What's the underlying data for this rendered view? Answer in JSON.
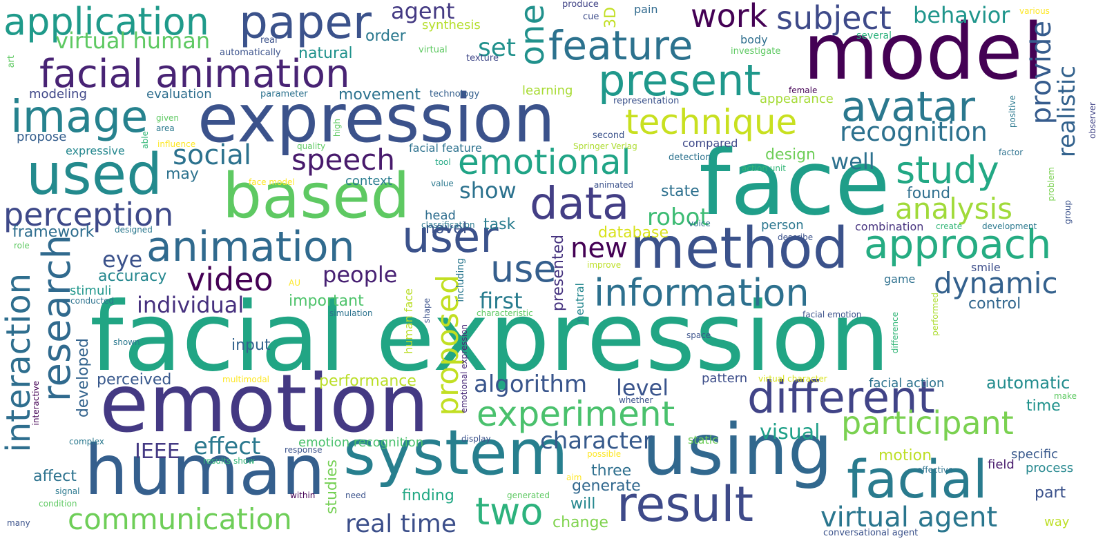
{
  "cloud": {
    "words": [
      {
        "text": "facial expression",
        "color": "#21a584"
      },
      {
        "text": "face",
        "color": "#1f9e89"
      },
      {
        "text": "emotion",
        "color": "#443983"
      },
      {
        "text": "expression",
        "color": "#3b528b"
      },
      {
        "text": "model",
        "color": "#440154"
      },
      {
        "text": "human",
        "color": "#355f8d"
      },
      {
        "text": "using",
        "color": "#31688e"
      },
      {
        "text": "system",
        "color": "#277f8e"
      },
      {
        "text": "based",
        "color": "#5ec962"
      },
      {
        "text": "used",
        "color": "#238a8d"
      },
      {
        "text": "method",
        "color": "#3b528b"
      },
      {
        "text": "result",
        "color": "#3e4a89"
      },
      {
        "text": "facial",
        "color": "#297b8e"
      },
      {
        "text": "different",
        "color": "#414487"
      },
      {
        "text": "paper",
        "color": "#3b528b"
      },
      {
        "text": "image",
        "color": "#26828e"
      },
      {
        "text": "data",
        "color": "#433e85"
      },
      {
        "text": "user",
        "color": "#3b528b"
      },
      {
        "text": "animation",
        "color": "#306a8e"
      },
      {
        "text": "facial animation",
        "color": "#482374"
      },
      {
        "text": "feature",
        "color": "#2c728e"
      },
      {
        "text": "present",
        "color": "#1f988b"
      },
      {
        "text": "approach",
        "color": "#25ac82"
      },
      {
        "text": "information",
        "color": "#2d708e"
      },
      {
        "text": "participant",
        "color": "#7ad151"
      },
      {
        "text": "experiment",
        "color": "#4ac16d"
      },
      {
        "text": "avatar",
        "color": "#2a788e"
      },
      {
        "text": "study",
        "color": "#22a884"
      },
      {
        "text": "application",
        "color": "#1f9a8a"
      },
      {
        "text": "emotional",
        "color": "#20a486"
      },
      {
        "text": "technique",
        "color": "#c8e020"
      },
      {
        "text": "research",
        "color": "#306a8e"
      },
      {
        "text": "interaction",
        "color": "#2e6e8e"
      },
      {
        "text": "two",
        "color": "#2db27d"
      },
      {
        "text": "one",
        "color": "#21918c"
      },
      {
        "text": "use",
        "color": "#355f8d"
      },
      {
        "text": "communication",
        "color": "#6ece58"
      },
      {
        "text": "perception",
        "color": "#3e4989"
      },
      {
        "text": "virtual agent",
        "color": "#2a768e"
      },
      {
        "text": "dynamic",
        "color": "#34618d"
      },
      {
        "text": "analysis",
        "color": "#a0da39"
      },
      {
        "text": "subject",
        "color": "#3e4a89"
      },
      {
        "text": "work",
        "color": "#440154"
      },
      {
        "text": "speech",
        "color": "#481a6c"
      },
      {
        "text": "video",
        "color": "#440154"
      },
      {
        "text": "social",
        "color": "#2c728e"
      },
      {
        "text": "recognition",
        "color": "#2c718e"
      },
      {
        "text": "proposed",
        "color": "#c2df23"
      },
      {
        "text": "provide",
        "color": "#365c8d"
      },
      {
        "text": "algorithm",
        "color": "#39558c"
      },
      {
        "text": "character",
        "color": "#375a8c"
      },
      {
        "text": "real time",
        "color": "#3c4f8a"
      },
      {
        "text": "new",
        "color": "#440154"
      },
      {
        "text": "realistic",
        "color": "#33628d"
      },
      {
        "text": "virtual human",
        "color": "#5ec962"
      },
      {
        "text": "behavior",
        "color": "#1f958b"
      },
      {
        "text": "agent",
        "color": "#443a83"
      },
      {
        "text": "effect",
        "color": "#2a788e"
      },
      {
        "text": "set",
        "color": "#21918c"
      },
      {
        "text": "robot",
        "color": "#3dbc74"
      },
      {
        "text": "people",
        "color": "#482173"
      },
      {
        "text": "individual",
        "color": "#46307e"
      },
      {
        "text": "first",
        "color": "#287c8e"
      },
      {
        "text": "show",
        "color": "#2c728e"
      },
      {
        "text": "well",
        "color": "#2c718e"
      },
      {
        "text": "IEEE",
        "color": "#443983"
      },
      {
        "text": "eye",
        "color": "#3b528b"
      },
      {
        "text": "level",
        "color": "#3a548c"
      },
      {
        "text": "visual",
        "color": "#1fa088"
      },
      {
        "text": "motion",
        "color": "#bddf26"
      },
      {
        "text": "framework",
        "color": "#2e6d8e"
      },
      {
        "text": "important",
        "color": "#4ec36b"
      },
      {
        "text": "performance",
        "color": "#bade28"
      },
      {
        "text": "automatic",
        "color": "#228c8d"
      },
      {
        "text": "task",
        "color": "#287c8e"
      },
      {
        "text": "state",
        "color": "#2d708e"
      },
      {
        "text": "studies",
        "color": "#75d054"
      },
      {
        "text": "database",
        "color": "#d8e219"
      },
      {
        "text": "design",
        "color": "#6ece58"
      },
      {
        "text": "developed",
        "color": "#33638d"
      },
      {
        "text": "control",
        "color": "#31668e"
      },
      {
        "text": "accuracy",
        "color": "#24878e"
      },
      {
        "text": "finding",
        "color": "#22a884"
      },
      {
        "text": "time",
        "color": "#20928c"
      },
      {
        "text": "perceived",
        "color": "#38588c"
      },
      {
        "text": "change",
        "color": "#7fd34e"
      },
      {
        "text": "three",
        "color": "#2e6f8e"
      },
      {
        "text": "will",
        "color": "#24878e"
      },
      {
        "text": "presented",
        "color": "#46337f"
      },
      {
        "text": "generate",
        "color": "#31688e"
      },
      {
        "text": "part",
        "color": "#3b528b"
      },
      {
        "text": "natural",
        "color": "#20928c"
      },
      {
        "text": "3D",
        "color": "#c2df23"
      },
      {
        "text": "affect",
        "color": "#2c728e"
      },
      {
        "text": "movement",
        "color": "#2c728e"
      },
      {
        "text": "input",
        "color": "#33638d"
      },
      {
        "text": "order",
        "color": "#2a788e"
      },
      {
        "text": "head",
        "color": "#2e6d8e"
      },
      {
        "text": "novel",
        "color": "#3b528b"
      },
      {
        "text": "may",
        "color": "#2c728e"
      },
      {
        "text": "found",
        "color": "#2e6f8e"
      },
      {
        "text": "context",
        "color": "#287c8e"
      },
      {
        "text": "process",
        "color": "#24878e"
      },
      {
        "text": "specific",
        "color": "#38588c"
      },
      {
        "text": "person",
        "color": "#2a768e"
      },
      {
        "text": "evaluation",
        "color": "#2e6e8e"
      },
      {
        "text": "propose",
        "color": "#355e8d"
      },
      {
        "text": "modeling",
        "color": "#3f4788"
      },
      {
        "text": "field",
        "color": "#481b6d"
      },
      {
        "text": "emotion recognition",
        "color": "#4ac16d"
      },
      {
        "text": "facial action",
        "color": "#2c728e"
      },
      {
        "text": "pattern",
        "color": "#3d4e8a"
      },
      {
        "text": "stimuli",
        "color": "#1f968b"
      },
      {
        "text": "facial feature",
        "color": "#2c718e"
      },
      {
        "text": "game",
        "color": "#2d708e"
      },
      {
        "text": "expressive",
        "color": "#24878e"
      },
      {
        "text": "synthesis",
        "color": "#b5de2b"
      },
      {
        "text": "learning",
        "color": "#a8db34"
      },
      {
        "text": "appearance",
        "color": "#a5db36"
      },
      {
        "text": "body",
        "color": "#2e6e8e"
      },
      {
        "text": "compared",
        "color": "#3e4989"
      },
      {
        "text": "smile",
        "color": "#3d4e8a"
      },
      {
        "text": "combination",
        "color": "#46327e"
      },
      {
        "text": "static",
        "color": "#6ece58"
      },
      {
        "text": "including",
        "color": "#2a778e"
      },
      {
        "text": "human face",
        "color": "#bade28"
      },
      {
        "text": "neutral",
        "color": "#24878e"
      },
      {
        "text": "several",
        "color": "#2db27d"
      },
      {
        "text": "pain",
        "color": "#306a8e"
      },
      {
        "text": "representation",
        "color": "#3b528b"
      },
      {
        "text": "emotional expression",
        "color": "#482878"
      },
      {
        "text": "technology",
        "color": "#35608d"
      },
      {
        "text": "cue",
        "color": "#3d4d8a"
      },
      {
        "text": "produce",
        "color": "#414487"
      },
      {
        "text": "texture",
        "color": "#3f4788"
      },
      {
        "text": "real",
        "color": "#3b528b"
      },
      {
        "text": "automatically",
        "color": "#3b528b"
      },
      {
        "text": "investigate",
        "color": "#5ec962"
      },
      {
        "text": "various",
        "color": "#fde725"
      },
      {
        "text": "virtual",
        "color": "#5ec962"
      },
      {
        "text": "parameter",
        "color": "#2c728e"
      },
      {
        "text": "female",
        "color": "#440154"
      },
      {
        "text": "second",
        "color": "#3b528b"
      },
      {
        "text": "area",
        "color": "#2a788e"
      },
      {
        "text": "given",
        "color": "#5ec962"
      },
      {
        "text": "influence",
        "color": "#fde725"
      },
      {
        "text": "quality",
        "color": "#5ec962"
      },
      {
        "text": "high",
        "color": "#5ec962"
      },
      {
        "text": "able",
        "color": "#35b779"
      },
      {
        "text": "tool",
        "color": "#22a884"
      },
      {
        "text": "Springer Verlag",
        "color": "#addc30"
      },
      {
        "text": "detection",
        "color": "#2c728e"
      },
      {
        "text": "action unit",
        "color": "#35b779"
      },
      {
        "text": "factor",
        "color": "#2c718e"
      },
      {
        "text": "positive",
        "color": "#2a788e"
      },
      {
        "text": "observer",
        "color": "#414487"
      },
      {
        "text": "problem",
        "color": "#7ad151"
      },
      {
        "text": "group",
        "color": "#3b528b"
      },
      {
        "text": "face model",
        "color": "#fde725"
      },
      {
        "text": "value",
        "color": "#2a788e"
      },
      {
        "text": "animated",
        "color": "#3b528b"
      },
      {
        "text": "voice",
        "color": "#2c728e"
      },
      {
        "text": "classification",
        "color": "#2a788e"
      },
      {
        "text": "designed",
        "color": "#2a788e"
      },
      {
        "text": "create",
        "color": "#35b779"
      },
      {
        "text": "development",
        "color": "#2a788e"
      },
      {
        "text": "describe",
        "color": "#3b528b"
      },
      {
        "text": "role",
        "color": "#5ec962"
      },
      {
        "text": "improve",
        "color": "#bddf26"
      },
      {
        "text": "AU",
        "color": "#fde725"
      },
      {
        "text": "conducted",
        "color": "#2c728e"
      },
      {
        "text": "simulation",
        "color": "#2c728e"
      },
      {
        "text": "characteristic",
        "color": "#5ec962"
      },
      {
        "text": "facial emotion",
        "color": "#3b528b"
      },
      {
        "text": "difference",
        "color": "#35b779"
      },
      {
        "text": "performed",
        "color": "#addc30"
      },
      {
        "text": "shape",
        "color": "#3b528b"
      },
      {
        "text": "shown",
        "color": "#2a788e"
      },
      {
        "text": "space",
        "color": "#3b528b"
      },
      {
        "text": "multimodal",
        "color": "#fde725"
      },
      {
        "text": "interactive",
        "color": "#440154"
      },
      {
        "text": "virtual character",
        "color": "#d8e219"
      },
      {
        "text": "whether",
        "color": "#3b528b"
      },
      {
        "text": "make",
        "color": "#5ec962"
      },
      {
        "text": "complex",
        "color": "#2a788e"
      },
      {
        "text": "results show",
        "color": "#35b779"
      },
      {
        "text": "response",
        "color": "#3b528b"
      },
      {
        "text": "display",
        "color": "#3b528b"
      },
      {
        "text": "possible",
        "color": "#fde725"
      },
      {
        "text": "aim",
        "color": "#fde725"
      },
      {
        "text": "effective",
        "color": "#2c728e"
      },
      {
        "text": "signal",
        "color": "#2a788e"
      },
      {
        "text": "within",
        "color": "#440154"
      },
      {
        "text": "need",
        "color": "#3b528b"
      },
      {
        "text": "generated",
        "color": "#5ec962"
      },
      {
        "text": "condition",
        "color": "#5ec962"
      },
      {
        "text": "many",
        "color": "#3b528b"
      },
      {
        "text": "way",
        "color": "#bddf26"
      },
      {
        "text": "conversational agent",
        "color": "#3b528b"
      },
      {
        "text": "art",
        "color": "#5ec962"
      }
    ]
  }
}
